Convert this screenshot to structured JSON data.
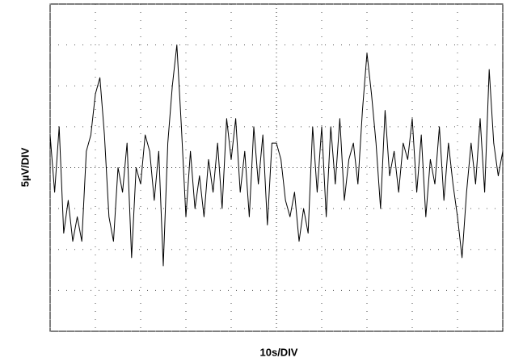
{
  "chart_data": {
    "type": "line",
    "x_label": "10s/DIV",
    "y_label": "5µV/DIV",
    "xlim": [
      0,
      100
    ],
    "xticks": [
      0,
      10,
      20,
      30,
      40,
      50,
      60,
      70,
      80,
      90,
      100
    ],
    "ylim": [
      -20,
      20
    ],
    "yticks": [
      -20,
      -15,
      -10,
      -5,
      0,
      5,
      10,
      15,
      20
    ],
    "grid": true,
    "series": [
      {
        "color": "#000000",
        "x": [
          0,
          1,
          2,
          3,
          4,
          5,
          6,
          7,
          8,
          9,
          10,
          11,
          12,
          13,
          14,
          15,
          16,
          17,
          18,
          19,
          20,
          21,
          22,
          23,
          24,
          25,
          26,
          27,
          28,
          29,
          30,
          31,
          32,
          33,
          34,
          35,
          36,
          37,
          38,
          39,
          40,
          41,
          42,
          43,
          44,
          45,
          46,
          47,
          48,
          49,
          50,
          51,
          52,
          53,
          54,
          55,
          56,
          57,
          58,
          59,
          60,
          61,
          62,
          63,
          64,
          65,
          66,
          67,
          68,
          69,
          70,
          71,
          72,
          73,
          74,
          75,
          76,
          77,
          78,
          79,
          80,
          81,
          82,
          83,
          84,
          85,
          86,
          87,
          88,
          89,
          90,
          91,
          92,
          93,
          94,
          95,
          96,
          97,
          98,
          99,
          100
        ],
        "values": [
          4,
          -3,
          5,
          -8,
          -4,
          -9,
          -6,
          -9,
          2,
          4,
          9,
          11,
          4,
          -6,
          -9,
          0,
          -3,
          3,
          -11,
          0,
          -2,
          4,
          2,
          -4,
          2,
          -12,
          3,
          10,
          15,
          5,
          -6,
          2,
          -5,
          -1,
          -6,
          1,
          -3,
          3,
          -5,
          6,
          1,
          6,
          -3,
          2,
          -6,
          5,
          -2,
          4,
          -7,
          3,
          3,
          1,
          -4,
          -6,
          -3,
          -9,
          -5,
          -8,
          5,
          -3,
          5,
          -6,
          5,
          -2,
          6,
          -4,
          1,
          3,
          -2,
          7,
          14,
          9,
          3,
          -5,
          7,
          -1,
          2,
          -3,
          3,
          1,
          6,
          -3,
          4,
          -6,
          1,
          -2,
          5,
          -4,
          3,
          -2,
          -6,
          -11,
          -3,
          3,
          -2,
          6,
          -3,
          12,
          3,
          -1,
          2
        ]
      }
    ]
  }
}
